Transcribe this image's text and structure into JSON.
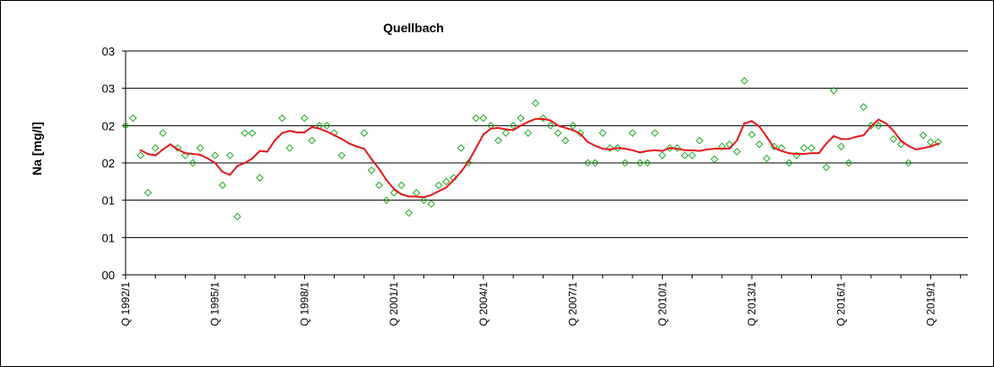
{
  "chart_data": {
    "type": "line",
    "title": "Quellbach",
    "ylabel": "Na [mg/l]",
    "xlabel": "",
    "ylim": [
      0,
      3
    ],
    "y_ticks": [
      0,
      0.5,
      1,
      1.5,
      2,
      2.5,
      3
    ],
    "y_tick_labels": [
      "00",
      "01",
      "01",
      "02",
      "02",
      "03",
      "03"
    ],
    "x_range": [
      1992.0,
      2020.25
    ],
    "x_ticks": [
      1992,
      1995,
      1998,
      2001,
      2004,
      2007,
      2010,
      2013,
      2016,
      2019
    ],
    "x_tick_labels": [
      "Q 1992/1",
      "Q 1995/1",
      "Q 1998/1",
      "Q 2001/1",
      "Q 2004/1",
      "Q 2007/1",
      "Q 2010/1",
      "Q 2013/1",
      "Q 2016/1",
      "Q 2019/1"
    ],
    "grid": true,
    "colors": {
      "measured": "#22aa22",
      "trend": "#e41a1c",
      "grid": "#000000"
    },
    "series": [
      {
        "kind": "scatter",
        "marker": "diamond",
        "values": [
          [
            1992.0,
            2.0
          ],
          [
            1992.25,
            2.1
          ],
          [
            1992.5,
            1.6
          ],
          [
            1992.75,
            1.1
          ],
          [
            1993.0,
            1.7
          ],
          [
            1993.25,
            1.9
          ],
          [
            1993.75,
            1.7
          ],
          [
            1994.0,
            1.6
          ],
          [
            1994.25,
            1.5
          ],
          [
            1994.5,
            1.7
          ],
          [
            1995.0,
            1.6
          ],
          [
            1995.25,
            1.2
          ],
          [
            1995.5,
            1.6
          ],
          [
            1995.75,
            0.78
          ],
          [
            1996.0,
            1.9
          ],
          [
            1996.25,
            1.9
          ],
          [
            1996.5,
            1.3
          ],
          [
            1997.25,
            2.1
          ],
          [
            1997.5,
            1.7
          ],
          [
            1998.0,
            2.1
          ],
          [
            1998.25,
            1.8
          ],
          [
            1998.5,
            2.0
          ],
          [
            1998.75,
            2.0
          ],
          [
            1999.0,
            1.9
          ],
          [
            1999.25,
            1.6
          ],
          [
            2000.0,
            1.9
          ],
          [
            2000.25,
            1.4
          ],
          [
            2000.5,
            1.2
          ],
          [
            2000.75,
            1.0
          ],
          [
            2001.0,
            1.1
          ],
          [
            2001.25,
            1.2
          ],
          [
            2001.5,
            0.83
          ],
          [
            2001.75,
            1.1
          ],
          [
            2002.0,
            1.0
          ],
          [
            2002.25,
            0.95
          ],
          [
            2002.5,
            1.2
          ],
          [
            2002.75,
            1.25
          ],
          [
            2003.0,
            1.3
          ],
          [
            2003.25,
            1.7
          ],
          [
            2003.5,
            1.5
          ],
          [
            2003.75,
            2.1
          ],
          [
            2004.0,
            2.1
          ],
          [
            2004.25,
            2.0
          ],
          [
            2004.5,
            1.8
          ],
          [
            2004.75,
            1.9
          ],
          [
            2005.0,
            2.0
          ],
          [
            2005.25,
            2.1
          ],
          [
            2005.5,
            1.9
          ],
          [
            2005.75,
            2.3
          ],
          [
            2006.0,
            2.1
          ],
          [
            2006.25,
            2.0
          ],
          [
            2006.5,
            1.9
          ],
          [
            2006.75,
            1.8
          ],
          [
            2007.0,
            2.0
          ],
          [
            2007.25,
            1.9
          ],
          [
            2007.5,
            1.5
          ],
          [
            2007.75,
            1.5
          ],
          [
            2008.0,
            1.9
          ],
          [
            2008.25,
            1.7
          ],
          [
            2008.5,
            1.7
          ],
          [
            2008.75,
            1.5
          ],
          [
            2009.0,
            1.9
          ],
          [
            2009.25,
            1.5
          ],
          [
            2009.5,
            1.5
          ],
          [
            2009.75,
            1.9
          ],
          [
            2010.0,
            1.6
          ],
          [
            2010.25,
            1.7
          ],
          [
            2010.5,
            1.7
          ],
          [
            2010.75,
            1.6
          ],
          [
            2011.0,
            1.6
          ],
          [
            2011.25,
            1.8
          ],
          [
            2011.75,
            1.55
          ],
          [
            2012.0,
            1.72
          ],
          [
            2012.25,
            1.75
          ],
          [
            2012.5,
            1.65
          ],
          [
            2012.75,
            2.6
          ],
          [
            2013.0,
            1.88
          ],
          [
            2013.25,
            1.75
          ],
          [
            2013.5,
            1.56
          ],
          [
            2013.75,
            1.72
          ],
          [
            2014.0,
            1.7
          ],
          [
            2014.25,
            1.5
          ],
          [
            2014.5,
            1.6
          ],
          [
            2014.75,
            1.7
          ],
          [
            2015.0,
            1.7
          ],
          [
            2015.5,
            1.44
          ],
          [
            2015.75,
            2.47
          ],
          [
            2016.0,
            1.72
          ],
          [
            2016.25,
            1.5
          ],
          [
            2016.75,
            2.25
          ],
          [
            2017.0,
            2.0
          ],
          [
            2017.25,
            2.0
          ],
          [
            2017.75,
            1.82
          ],
          [
            2018.0,
            1.75
          ],
          [
            2018.25,
            1.5
          ],
          [
            2018.75,
            1.87
          ],
          [
            2019.0,
            1.78
          ],
          [
            2019.25,
            1.78
          ]
        ]
      },
      {
        "kind": "line",
        "values": [
          [
            1992.5,
            1.67
          ],
          [
            1992.75,
            1.62
          ],
          [
            1993.0,
            1.6
          ],
          [
            1993.25,
            1.68
          ],
          [
            1993.5,
            1.75
          ],
          [
            1993.75,
            1.68
          ],
          [
            1994.0,
            1.63
          ],
          [
            1994.25,
            1.62
          ],
          [
            1994.5,
            1.61
          ],
          [
            1994.75,
            1.56
          ],
          [
            1995.0,
            1.5
          ],
          [
            1995.25,
            1.38
          ],
          [
            1995.5,
            1.34
          ],
          [
            1995.75,
            1.46
          ],
          [
            1996.0,
            1.5
          ],
          [
            1996.25,
            1.56
          ],
          [
            1996.5,
            1.66
          ],
          [
            1996.75,
            1.65
          ],
          [
            1997.0,
            1.8
          ],
          [
            1997.25,
            1.9
          ],
          [
            1997.5,
            1.93
          ],
          [
            1997.75,
            1.91
          ],
          [
            1998.0,
            1.91
          ],
          [
            1998.25,
            1.98
          ],
          [
            1998.5,
            1.96
          ],
          [
            1998.75,
            1.92
          ],
          [
            1999.0,
            1.87
          ],
          [
            1999.25,
            1.82
          ],
          [
            1999.5,
            1.76
          ],
          [
            1999.75,
            1.72
          ],
          [
            2000.0,
            1.69
          ],
          [
            2000.25,
            1.55
          ],
          [
            2000.5,
            1.42
          ],
          [
            2000.75,
            1.27
          ],
          [
            2001.0,
            1.15
          ],
          [
            2001.25,
            1.08
          ],
          [
            2001.5,
            1.05
          ],
          [
            2001.75,
            1.05
          ],
          [
            2002.0,
            1.04
          ],
          [
            2002.25,
            1.07
          ],
          [
            2002.5,
            1.12
          ],
          [
            2002.75,
            1.17
          ],
          [
            2003.0,
            1.27
          ],
          [
            2003.25,
            1.38
          ],
          [
            2003.5,
            1.52
          ],
          [
            2003.75,
            1.7
          ],
          [
            2004.0,
            1.88
          ],
          [
            2004.25,
            1.96
          ],
          [
            2004.5,
            1.97
          ],
          [
            2004.75,
            1.95
          ],
          [
            2005.0,
            1.94
          ],
          [
            2005.25,
            2.0
          ],
          [
            2005.5,
            2.05
          ],
          [
            2005.75,
            2.09
          ],
          [
            2006.0,
            2.09
          ],
          [
            2006.25,
            2.07
          ],
          [
            2006.5,
            2.0
          ],
          [
            2006.75,
            1.97
          ],
          [
            2007.0,
            1.94
          ],
          [
            2007.25,
            1.89
          ],
          [
            2007.5,
            1.78
          ],
          [
            2007.75,
            1.73
          ],
          [
            2008.0,
            1.69
          ],
          [
            2008.25,
            1.68
          ],
          [
            2008.5,
            1.7
          ],
          [
            2008.75,
            1.69
          ],
          [
            2009.0,
            1.67
          ],
          [
            2009.25,
            1.64
          ],
          [
            2009.5,
            1.66
          ],
          [
            2009.75,
            1.67
          ],
          [
            2010.0,
            1.66
          ],
          [
            2010.25,
            1.7
          ],
          [
            2010.5,
            1.69
          ],
          [
            2010.75,
            1.67
          ],
          [
            2011.0,
            1.67
          ],
          [
            2011.25,
            1.66
          ],
          [
            2011.5,
            1.68
          ],
          [
            2011.75,
            1.69
          ],
          [
            2012.0,
            1.69
          ],
          [
            2012.25,
            1.69
          ],
          [
            2012.5,
            1.8
          ],
          [
            2012.75,
            2.03
          ],
          [
            2013.0,
            2.06
          ],
          [
            2013.25,
            1.99
          ],
          [
            2013.5,
            1.85
          ],
          [
            2013.75,
            1.7
          ],
          [
            2014.0,
            1.66
          ],
          [
            2014.25,
            1.63
          ],
          [
            2014.5,
            1.62
          ],
          [
            2014.75,
            1.62
          ],
          [
            2015.0,
            1.63
          ],
          [
            2015.25,
            1.63
          ],
          [
            2015.5,
            1.76
          ],
          [
            2015.75,
            1.86
          ],
          [
            2016.0,
            1.82
          ],
          [
            2016.25,
            1.82
          ],
          [
            2016.5,
            1.85
          ],
          [
            2016.75,
            1.87
          ],
          [
            2017.0,
            1.99
          ],
          [
            2017.25,
            2.08
          ],
          [
            2017.5,
            2.03
          ],
          [
            2017.75,
            1.93
          ],
          [
            2018.0,
            1.8
          ],
          [
            2018.25,
            1.73
          ],
          [
            2018.5,
            1.68
          ],
          [
            2018.75,
            1.7
          ],
          [
            2019.0,
            1.72
          ],
          [
            2019.25,
            1.76
          ]
        ]
      }
    ]
  }
}
